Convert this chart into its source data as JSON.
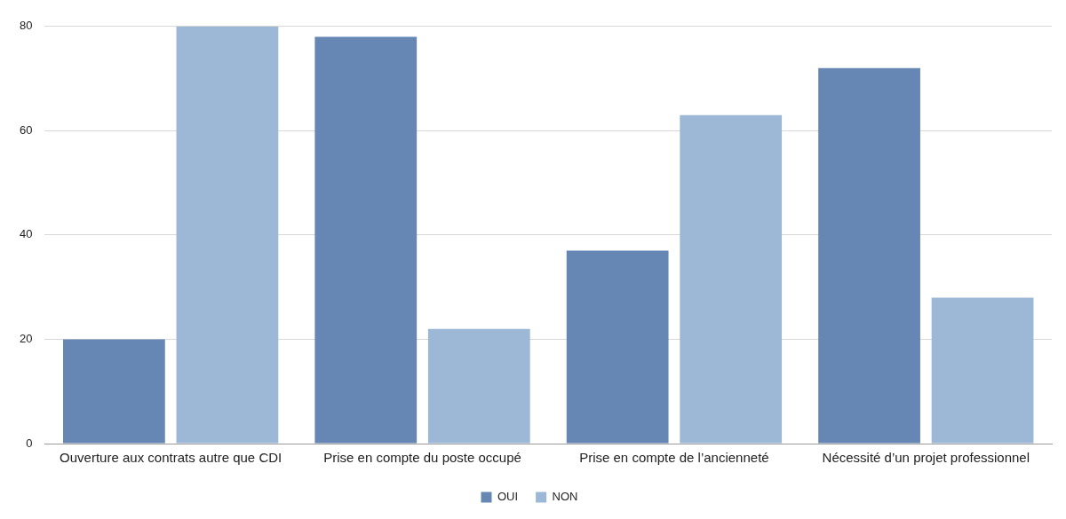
{
  "chart_data": {
    "type": "bar",
    "categories": [
      "Ouverture aux contrats autre que CDI",
      "Prise en compte du poste occupé",
      "Prise en compte de l’ancienneté",
      "Nécessité d’un projet professionnel"
    ],
    "series": [
      {
        "name": "OUI",
        "color": "#6686b3",
        "values": [
          20,
          78,
          37,
          72
        ]
      },
      {
        "name": "NON",
        "color": "#9db8d7",
        "values": [
          80,
          22,
          63,
          28
        ]
      }
    ],
    "ylim": [
      0,
      80
    ],
    "yticks": [
      0,
      20,
      40,
      60,
      80
    ],
    "grid": "y",
    "legend": "bottom"
  }
}
